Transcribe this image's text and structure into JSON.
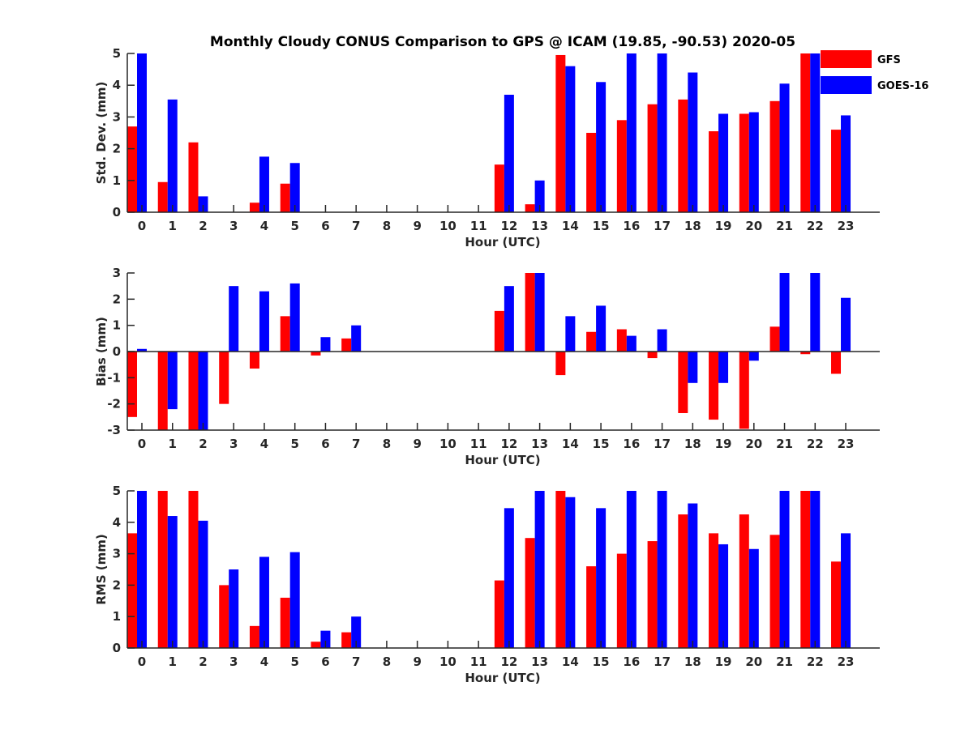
{
  "chart_data": [
    {
      "type": "bar",
      "title": "Monthly Cloudy CONUS Comparison to GPS @ ICAM (19.85, -90.53) 2020-05",
      "xlabel": "Hour (UTC)",
      "ylabel": "Std. Dev. (mm)",
      "ylim": [
        0,
        5
      ],
      "yticks": [
        0,
        1,
        2,
        3,
        4,
        5
      ],
      "categories": [
        "0",
        "1",
        "2",
        "3",
        "4",
        "5",
        "6",
        "7",
        "8",
        "9",
        "10",
        "11",
        "12",
        "13",
        "14",
        "15",
        "16",
        "17",
        "18",
        "19",
        "20",
        "21",
        "22",
        "23"
      ],
      "series": [
        {
          "name": "GFS",
          "color": "#ff0000",
          "values": [
            2.7,
            0.95,
            2.2,
            0,
            0.3,
            0.9,
            0,
            0,
            0,
            0,
            0,
            0,
            1.5,
            0.25,
            4.95,
            2.5,
            2.9,
            3.4,
            3.55,
            2.55,
            3.1,
            3.5,
            5.0,
            2.6
          ]
        },
        {
          "name": "GOES-16",
          "color": "#0000ff",
          "values": [
            5.0,
            3.55,
            0.5,
            0,
            1.75,
            1.55,
            0,
            0,
            0,
            0,
            0,
            0,
            3.7,
            1.0,
            4.6,
            4.1,
            5.0,
            5.0,
            4.4,
            3.1,
            3.15,
            4.05,
            5.0,
            3.05
          ]
        }
      ],
      "legend": {
        "position": "top-right",
        "entries": [
          "GFS",
          "GOES-16"
        ]
      },
      "grid": false
    },
    {
      "type": "bar",
      "xlabel": "Hour (UTC)",
      "ylabel": "Bias (mm)",
      "ylim": [
        -3,
        3
      ],
      "yticks": [
        -3,
        -2,
        -1,
        0,
        1,
        2,
        3
      ],
      "categories": [
        "0",
        "1",
        "2",
        "3",
        "4",
        "5",
        "6",
        "7",
        "8",
        "9",
        "10",
        "11",
        "12",
        "13",
        "14",
        "15",
        "16",
        "17",
        "18",
        "19",
        "20",
        "21",
        "22",
        "23"
      ],
      "series": [
        {
          "name": "GFS",
          "color": "#ff0000",
          "values": [
            -2.5,
            -3.0,
            -3.0,
            -2.0,
            -0.65,
            1.35,
            -0.15,
            0.5,
            0,
            0,
            0,
            0,
            1.55,
            3.0,
            -0.9,
            0.75,
            0.85,
            -0.25,
            -2.35,
            -2.6,
            -2.95,
            0.95,
            -0.1,
            -0.85
          ]
        },
        {
          "name": "GOES-16",
          "color": "#0000ff",
          "values": [
            0.1,
            -2.2,
            -3.0,
            2.5,
            2.3,
            2.6,
            0.55,
            1.0,
            0,
            0,
            0,
            0,
            2.5,
            3.0,
            1.35,
            1.75,
            0.6,
            0.85,
            -1.2,
            -1.2,
            -0.35,
            3.0,
            3.0,
            2.05
          ]
        }
      ],
      "grid": false
    },
    {
      "type": "bar",
      "xlabel": "Hour (UTC)",
      "ylabel": "RMS (mm)",
      "ylim": [
        0,
        5
      ],
      "yticks": [
        0,
        1,
        2,
        3,
        4,
        5
      ],
      "categories": [
        "0",
        "1",
        "2",
        "3",
        "4",
        "5",
        "6",
        "7",
        "8",
        "9",
        "10",
        "11",
        "12",
        "13",
        "14",
        "15",
        "16",
        "17",
        "18",
        "19",
        "20",
        "21",
        "22",
        "23"
      ],
      "series": [
        {
          "name": "GFS",
          "color": "#ff0000",
          "values": [
            3.65,
            5.0,
            5.0,
            2.0,
            0.7,
            1.6,
            0.2,
            0.5,
            0,
            0,
            0,
            0,
            2.15,
            3.5,
            5.0,
            2.6,
            3.0,
            3.4,
            4.25,
            3.65,
            4.25,
            3.6,
            5.0,
            2.75
          ]
        },
        {
          "name": "GOES-16",
          "color": "#0000ff",
          "values": [
            5.0,
            4.2,
            4.05,
            2.5,
            2.9,
            3.05,
            0.55,
            1.0,
            0,
            0,
            0,
            0,
            4.45,
            5.0,
            4.8,
            4.45,
            5.0,
            5.0,
            4.6,
            3.3,
            3.15,
            5.0,
            5.0,
            3.65
          ]
        }
      ],
      "grid": false
    }
  ]
}
